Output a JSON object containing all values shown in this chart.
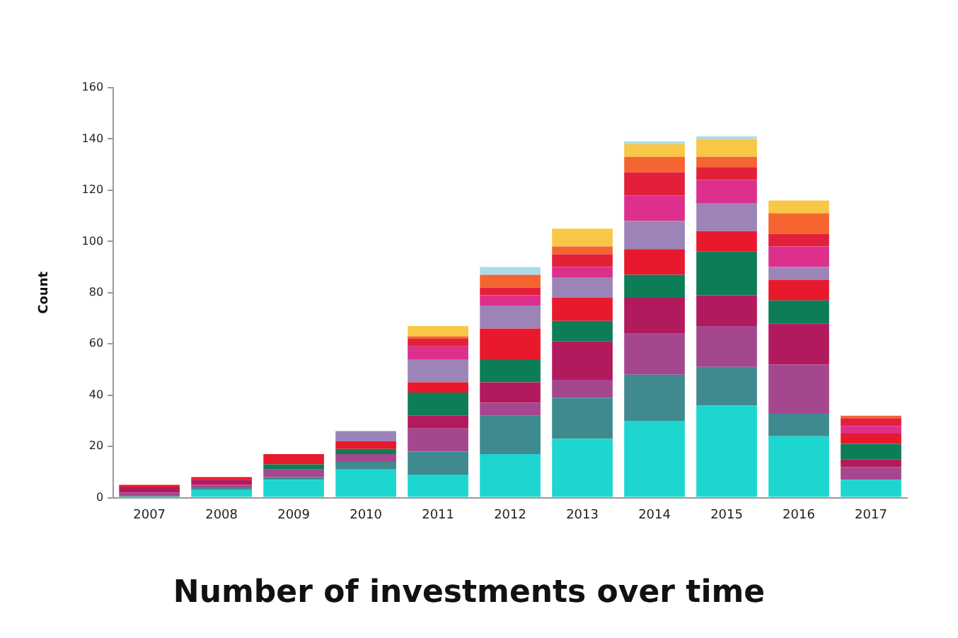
{
  "chart_data": {
    "type": "bar",
    "title": "Number of investments over time",
    "ylabel": "Count",
    "categories": [
      "2007",
      "2008",
      "2009",
      "2010",
      "2011",
      "2012",
      "2013",
      "2014",
      "2015",
      "2016",
      "2017"
    ],
    "stacked": true,
    "ylim": [
      0,
      160
    ],
    "yticks": [
      0,
      20,
      40,
      60,
      80,
      100,
      120,
      140,
      160
    ],
    "grid": false,
    "legend": false,
    "series": [
      {
        "color": "#1dd6d0",
        "values": [
          0,
          3,
          7,
          11,
          9,
          17,
          23,
          30,
          36,
          24,
          7
        ]
      },
      {
        "color": "#3f8a8e",
        "values": [
          1,
          1,
          1,
          3,
          9,
          15,
          16,
          18,
          15,
          9,
          0
        ]
      },
      {
        "color": "#a4478f",
        "values": [
          1,
          1,
          3,
          3,
          9,
          5,
          7,
          16,
          16,
          19,
          5
        ]
      },
      {
        "color": "#b21a5e",
        "values": [
          2,
          2,
          0,
          0,
          5,
          8,
          15,
          14,
          12,
          16,
          3
        ]
      },
      {
        "color": "#0d7d57",
        "values": [
          0,
          0,
          2,
          2,
          9,
          9,
          8,
          9,
          17,
          9,
          6
        ]
      },
      {
        "color": "#e8192c",
        "values": [
          1,
          1,
          4,
          3,
          4,
          12,
          9,
          10,
          8,
          8,
          4
        ]
      },
      {
        "color": "#9c84b8",
        "values": [
          0,
          0,
          0,
          4,
          9,
          9,
          8,
          11,
          11,
          5,
          0
        ]
      },
      {
        "color": "#dd2f8c",
        "values": [
          0,
          0,
          0,
          0,
          5,
          4,
          4,
          10,
          9,
          8,
          3
        ]
      },
      {
        "color": "#e3203a",
        "values": [
          0,
          0,
          0,
          0,
          3,
          3,
          5,
          9,
          5,
          5,
          3
        ]
      },
      {
        "color": "#f46530",
        "values": [
          0,
          0,
          0,
          0,
          1,
          5,
          3,
          6,
          4,
          8,
          1
        ]
      },
      {
        "color": "#f8c745",
        "values": [
          0,
          0,
          0,
          0,
          4,
          0,
          7,
          5,
          7,
          5,
          0
        ]
      },
      {
        "color": "#a9dce8",
        "values": [
          0,
          0,
          0,
          0,
          0,
          3,
          0,
          1,
          1,
          0,
          0
        ]
      }
    ]
  }
}
